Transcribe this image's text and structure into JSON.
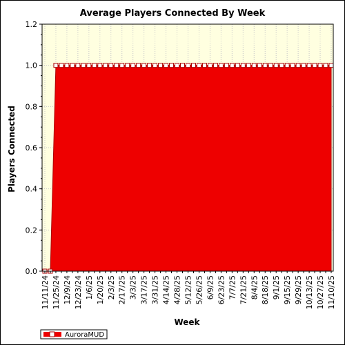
{
  "chart_data": {
    "type": "area",
    "title": "Average Players Connected By Week",
    "xlabel": "Week",
    "ylabel": "Players Connected",
    "ylim": [
      0,
      1.2
    ],
    "yticks": [
      "0.0",
      "0.2",
      "0.4",
      "0.6",
      "0.8",
      "1.0",
      "1.2"
    ],
    "x_tick_labels": [
      "11/11/24",
      "11/25/24",
      "12/9/24",
      "12/23/24",
      "1/6/25",
      "1/20/25",
      "2/3/25",
      "2/17/25",
      "3/3/25",
      "3/17/25",
      "3/31/25",
      "4/14/25",
      "4/28/25",
      "5/12/25",
      "5/26/25",
      "6/9/25",
      "6/23/25",
      "7/7/25",
      "7/21/25",
      "8/4/25",
      "8/18/25",
      "9/1/25",
      "9/15/25",
      "9/29/25",
      "10/13/25",
      "10/27/25",
      "11/10/25"
    ],
    "x": [
      "11/11/24",
      "11/18/24",
      "11/25/24",
      "12/2/24",
      "12/9/24",
      "12/16/24",
      "12/23/24",
      "12/30/24",
      "1/6/25",
      "1/13/25",
      "1/20/25",
      "1/27/25",
      "2/3/25",
      "2/10/25",
      "2/17/25",
      "2/24/25",
      "3/3/25",
      "3/10/25",
      "3/17/25",
      "3/24/25",
      "3/31/25",
      "4/7/25",
      "4/14/25",
      "4/21/25",
      "4/28/25",
      "5/5/25",
      "5/12/25",
      "5/19/25",
      "5/26/25",
      "6/2/25",
      "6/9/25",
      "6/16/25",
      "6/23/25",
      "6/30/25",
      "7/7/25",
      "7/14/25",
      "7/21/25",
      "7/28/25",
      "8/4/25",
      "8/11/25",
      "8/18/25",
      "8/25/25",
      "9/1/25",
      "9/8/25",
      "9/15/25",
      "9/22/25",
      "9/29/25",
      "10/6/25",
      "10/13/25",
      "10/20/25",
      "10/27/25",
      "11/3/25",
      "11/10/25"
    ],
    "series": [
      {
        "name": "AuroraMUD",
        "color": "#ee0000",
        "values": [
          0,
          0,
          1,
          1,
          1,
          1,
          1,
          1,
          1,
          1,
          1,
          1,
          1,
          1,
          1,
          1,
          1,
          1,
          1,
          1,
          1,
          1,
          1,
          1,
          1,
          1,
          1,
          1,
          1,
          1,
          1,
          1,
          1,
          1,
          1,
          1,
          1,
          1,
          1,
          1,
          1,
          1,
          1,
          1,
          1,
          1,
          1,
          1,
          1,
          1,
          1,
          1,
          1
        ]
      }
    ],
    "grid": true,
    "legend_position": "bottom-left",
    "plot_background": "#ffffe0"
  }
}
